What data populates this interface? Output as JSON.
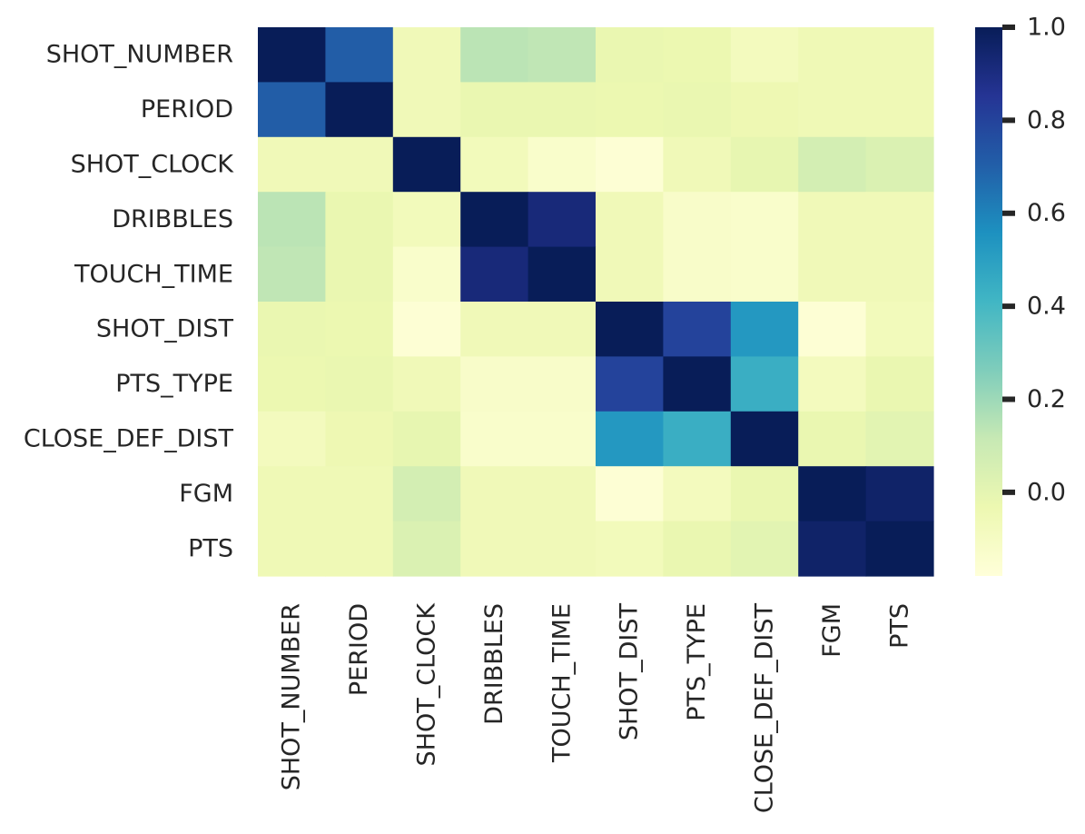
{
  "chart_data": {
    "type": "heatmap",
    "title": "",
    "xlabel": "",
    "ylabel": "",
    "labels": [
      "SHOT_NUMBER",
      "PERIOD",
      "SHOT_CLOCK",
      "DRIBBLES",
      "TOUCH_TIME",
      "SHOT_DIST",
      "PTS_TYPE",
      "CLOSE_DEF_DIST",
      "FGM",
      "PTS"
    ],
    "matrix": [
      [
        1.0,
        0.71,
        -0.06,
        0.14,
        0.13,
        -0.02,
        -0.03,
        -0.08,
        -0.05,
        -0.05
      ],
      [
        0.71,
        1.0,
        -0.06,
        -0.02,
        -0.02,
        -0.03,
        -0.02,
        -0.04,
        -0.05,
        -0.05
      ],
      [
        -0.06,
        -0.06,
        1.0,
        -0.07,
        -0.13,
        -0.16,
        -0.06,
        -0.01,
        0.07,
        0.04
      ],
      [
        0.14,
        -0.02,
        -0.07,
        1.0,
        0.92,
        -0.06,
        -0.12,
        -0.13,
        -0.06,
        -0.06
      ],
      [
        0.13,
        -0.02,
        -0.13,
        0.92,
        1.0,
        -0.06,
        -0.12,
        -0.13,
        -0.06,
        -0.06
      ],
      [
        -0.02,
        -0.03,
        -0.16,
        -0.06,
        -0.06,
        1.0,
        0.8,
        0.53,
        -0.16,
        -0.07
      ],
      [
        -0.03,
        -0.02,
        -0.06,
        -0.12,
        -0.12,
        0.8,
        1.0,
        0.44,
        -0.08,
        -0.02
      ],
      [
        -0.08,
        -0.04,
        -0.01,
        -0.13,
        -0.13,
        0.53,
        0.44,
        1.0,
        -0.02,
        0.01
      ],
      [
        -0.05,
        -0.05,
        0.07,
        -0.06,
        -0.06,
        -0.16,
        -0.08,
        -0.02,
        1.0,
        0.96
      ],
      [
        -0.05,
        -0.05,
        0.04,
        -0.06,
        -0.06,
        -0.07,
        -0.02,
        0.01,
        0.96,
        1.0
      ]
    ],
    "colorscale": "YlGnBu",
    "colorbar": {
      "range": [
        -0.18,
        1.0
      ],
      "ticks": [
        0.0,
        0.2,
        0.4,
        0.6,
        0.8,
        1.0
      ],
      "tick_labels": [
        "0.0",
        "0.2",
        "0.4",
        "0.6",
        "0.8",
        "1.0"
      ]
    },
    "grid": false
  }
}
